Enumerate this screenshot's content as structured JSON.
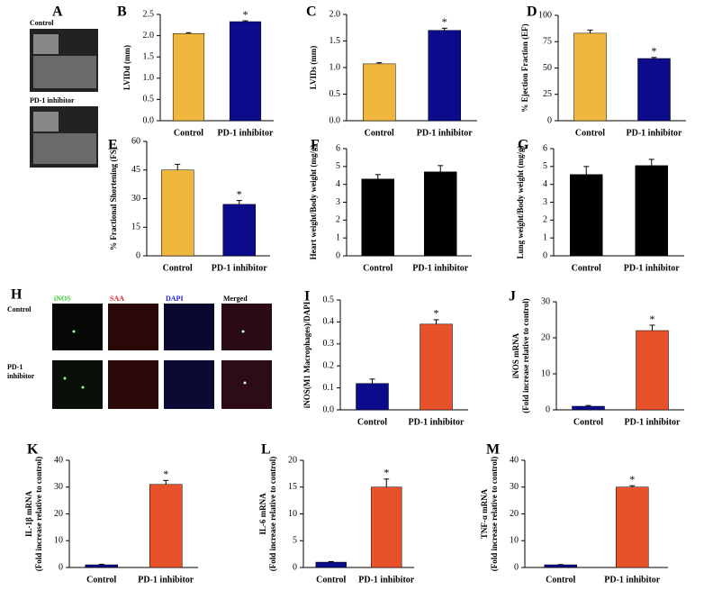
{
  "panel_a": {
    "label": "A",
    "rows": [
      "Control",
      "PD-1 inhibitor"
    ]
  },
  "panel_h": {
    "label": "H",
    "columns": [
      "iNOS",
      "SAA",
      "DAPI",
      "Merged"
    ],
    "rows": [
      [
        "Control"
      ],
      [
        "PD-1",
        "inhibitor"
      ]
    ]
  },
  "chart_data": [
    {
      "type": "bar",
      "panel": "B",
      "ylabel": [
        "LVIDd (mm)"
      ],
      "categories": [
        "Control",
        "PD-1 inhibitor"
      ],
      "values": [
        2.05,
        2.33
      ],
      "errors": [
        0.02,
        0.02
      ],
      "significance": [
        null,
        "*"
      ],
      "colors": [
        "#f0b73e",
        "#0b0b8c"
      ],
      "ylim": [
        0,
        2.5
      ],
      "yticks": [
        {
          "value": 0,
          "label": "0.0"
        },
        0.5,
        {
          "value": 1,
          "label": "1.0"
        },
        1.5,
        {
          "value": 2,
          "label": "2.0"
        },
        2.5
      ]
    },
    {
      "type": "bar",
      "panel": "C",
      "ylabel": [
        "LVIDs (mm)"
      ],
      "categories": [
        "Control",
        "PD-1 inhibitor"
      ],
      "values": [
        1.07,
        1.7
      ],
      "errors": [
        0.02,
        0.04
      ],
      "significance": [
        null,
        "*"
      ],
      "colors": [
        "#f0b73e",
        "#0b0b8c"
      ],
      "ylim": [
        0,
        2
      ],
      "yticks": [
        {
          "value": 0,
          "label": "0.0"
        },
        0.5,
        {
          "value": 1,
          "label": "1.0"
        },
        1.5,
        {
          "value": 2,
          "label": "2.0"
        }
      ]
    },
    {
      "type": "bar",
      "panel": "D",
      "ylabel": [
        "% Ejection Fraction (EF)"
      ],
      "categories": [
        "Control",
        "PD-1 inhibitor"
      ],
      "values": [
        83,
        59
      ],
      "errors": [
        3,
        1
      ],
      "significance": [
        null,
        "*"
      ],
      "colors": [
        "#f0b73e",
        "#0b0b8c"
      ],
      "ylim": [
        0,
        100
      ],
      "yticks": [
        0,
        25,
        50,
        75,
        100
      ]
    },
    {
      "type": "bar",
      "panel": "E",
      "ylabel": [
        "% Fractional Shortening (FS)"
      ],
      "categories": [
        "Control",
        "PD-1 inhibitor"
      ],
      "values": [
        45,
        27
      ],
      "errors": [
        3,
        2
      ],
      "significance": [
        null,
        "*"
      ],
      "colors": [
        "#f0b73e",
        "#0b0b8c"
      ],
      "ylim": [
        0,
        60
      ],
      "yticks": [
        0,
        15,
        30,
        45,
        60
      ]
    },
    {
      "type": "bar",
      "panel": "F",
      "ylabel": [
        "Heart weight/Body weight (mg/g)"
      ],
      "categories": [
        "Control",
        "PD-1 inhibitor"
      ],
      "values": [
        4.3,
        4.7
      ],
      "errors": [
        0.25,
        0.35
      ],
      "significance": [
        null,
        null
      ],
      "colors": [
        "#000000",
        "#000000"
      ],
      "ylim": [
        0,
        6
      ],
      "yticks": [
        0,
        1,
        2,
        3,
        4,
        5,
        6
      ]
    },
    {
      "type": "bar",
      "panel": "G",
      "ylabel": [
        "Lung weight/Body weight (mg/g)"
      ],
      "categories": [
        "Control",
        "PD-1 inhibitor"
      ],
      "values": [
        4.55,
        5.05
      ],
      "errors": [
        0.45,
        0.35
      ],
      "significance": [
        null,
        null
      ],
      "colors": [
        "#000000",
        "#000000"
      ],
      "ylim": [
        0,
        6
      ],
      "yticks": [
        0,
        1,
        2,
        3,
        4,
        5,
        6
      ]
    },
    {
      "type": "bar",
      "panel": "I",
      "ylabel": [
        "iNOS(M1 Macrophages)/DAPI"
      ],
      "categories": [
        "Control",
        "PD-1 inhibitor"
      ],
      "values": [
        0.12,
        0.39
      ],
      "errors": [
        0.02,
        0.02
      ],
      "significance": [
        null,
        "*"
      ],
      "colors": [
        "#0b0b8c",
        "#e8522a"
      ],
      "ylim": [
        0,
        0.5
      ],
      "yticks": [
        {
          "value": 0,
          "label": "0.0"
        },
        0.1,
        0.2,
        0.3,
        0.4,
        0.5
      ]
    },
    {
      "type": "bar",
      "panel": "J",
      "ylabel": [
        "iNOS mRNA",
        "(Fold increase relative to control)"
      ],
      "categories": [
        "Control",
        "PD-1 inhibitor"
      ],
      "values": [
        1,
        22
      ],
      "errors": [
        0.2,
        1.5
      ],
      "significance": [
        null,
        "*"
      ],
      "colors": [
        "#0b0b8c",
        "#e8522a"
      ],
      "ylim": [
        0,
        30
      ],
      "yticks": [
        0,
        10,
        20,
        30
      ]
    },
    {
      "type": "bar",
      "panel": "K",
      "ylabel": [
        "IL-1β mRNA",
        "(Fold increase relative to control)"
      ],
      "categories": [
        "Control",
        "PD-1 inhibitor"
      ],
      "values": [
        1,
        31
      ],
      "errors": [
        0.2,
        1.5
      ],
      "significance": [
        null,
        "*"
      ],
      "colors": [
        "#0b0b8c",
        "#e8522a"
      ],
      "ylim": [
        0,
        40
      ],
      "yticks": [
        0,
        10,
        20,
        30,
        40
      ]
    },
    {
      "type": "bar",
      "panel": "L",
      "ylabel": [
        "IL-6 mRNA",
        "(Fold increase relative to control)"
      ],
      "categories": [
        "Control",
        "PD-1 inhibitor"
      ],
      "values": [
        1,
        15
      ],
      "errors": [
        0.1,
        1.5
      ],
      "significance": [
        null,
        "*"
      ],
      "colors": [
        "#0b0b8c",
        "#e8522a"
      ],
      "ylim": [
        0,
        20
      ],
      "yticks": [
        0,
        5,
        10,
        15,
        20
      ]
    },
    {
      "type": "bar",
      "panel": "M",
      "ylabel": [
        "TNF-α mRNA",
        "(Fold increase relative to control)"
      ],
      "categories": [
        "Control",
        "PD-1 inhibitor"
      ],
      "values": [
        1,
        30
      ],
      "errors": [
        0.1,
        0.5
      ],
      "significance": [
        null,
        "*"
      ],
      "colors": [
        "#0b0b8c",
        "#e8522a"
      ],
      "ylim": [
        0,
        40
      ],
      "yticks": [
        0,
        10,
        20,
        30,
        40
      ]
    }
  ]
}
